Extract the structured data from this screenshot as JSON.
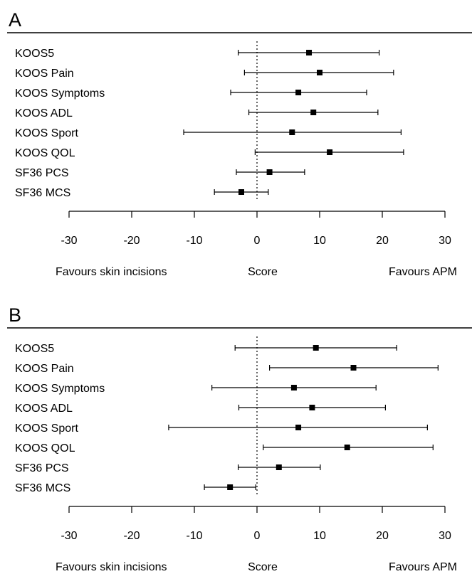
{
  "chart_data": [
    {
      "type": "scatter",
      "panel_label": "A",
      "categories": [
        "KOOS5",
        "KOOS Pain",
        "KOOS Symptoms",
        "KOOS ADL",
        "KOOS Sport",
        "KOOS QOL",
        "SF36 PCS",
        "SF36 MCS"
      ],
      "series": [
        {
          "estimate": [
            8.3,
            10.0,
            6.6,
            9.0,
            5.6,
            11.6,
            2.0,
            -2.5
          ],
          "ci_low": [
            -3.0,
            -2.0,
            -4.2,
            -1.3,
            -11.7,
            -0.3,
            -3.3,
            -6.8
          ],
          "ci_high": [
            19.5,
            21.8,
            17.5,
            19.3,
            23.0,
            23.4,
            7.6,
            1.8
          ]
        }
      ],
      "xlim": [
        -30,
        30
      ],
      "xticks": [
        -30,
        -20,
        -10,
        0,
        10,
        20,
        30
      ],
      "reference_line": 0,
      "xlabel_left": "Favours skin incisions",
      "xlabel_center": "Score",
      "xlabel_right": "Favours APM"
    },
    {
      "type": "scatter",
      "panel_label": "B",
      "categories": [
        "KOOS5",
        "KOOS Pain",
        "KOOS Symptoms",
        "KOOS ADL",
        "KOOS Sport",
        "KOOS QOL",
        "SF36 PCS",
        "SF36 MCS"
      ],
      "series": [
        {
          "estimate": [
            9.4,
            15.4,
            5.9,
            8.8,
            6.6,
            14.4,
            3.5,
            -4.3
          ],
          "ci_low": [
            -3.5,
            2.0,
            -7.2,
            -2.9,
            -14.1,
            1.0,
            -3.0,
            -8.4
          ],
          "ci_high": [
            22.3,
            28.9,
            19.0,
            20.5,
            27.2,
            28.1,
            10.1,
            -0.2
          ]
        }
      ],
      "xlim": [
        -30,
        30
      ],
      "xticks": [
        -30,
        -20,
        -10,
        0,
        10,
        20,
        30
      ],
      "reference_line": 0,
      "xlabel_left": "Favours skin incisions",
      "xlabel_center": "Score",
      "xlabel_right": "Favours APM"
    }
  ]
}
